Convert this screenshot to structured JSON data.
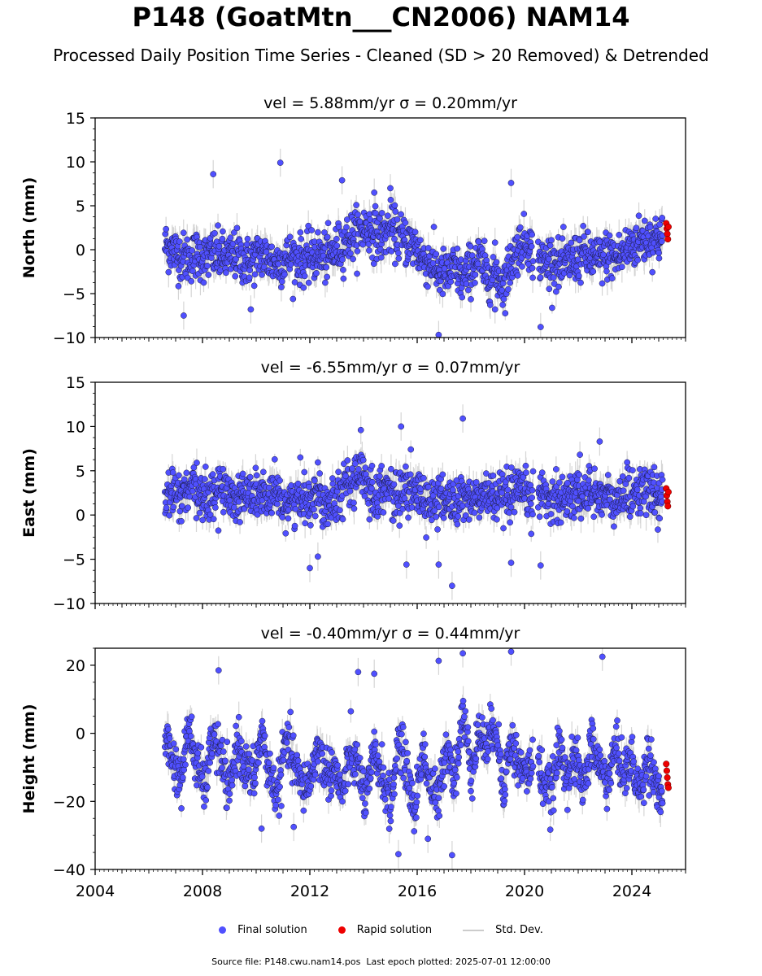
{
  "title": "P148 (GoatMtn___CN2006) NAM14",
  "subtitle": "Processed Daily Position Time Series - Cleaned (SD > 20 Removed) & Detrended",
  "legend": {
    "final": "Final solution",
    "rapid": "Rapid solution",
    "std": "Std. Dev."
  },
  "footer": "Source file: P148.cwu.nam14.pos  Last epoch plotted: 2025-07-01 12:00:00",
  "colors": {
    "final": "#5050ff",
    "rapid": "#ee0000",
    "std": "#c8c8c8",
    "edge": "#1a1a40"
  },
  "chart_data": [
    {
      "type": "scatter",
      "title": "vel = 5.88mm/yr   σ = 0.20mm/yr",
      "xlabel": "",
      "ylabel": "North (mm)",
      "xlim": [
        2004.0,
        2026.0
      ],
      "ylim": [
        -10,
        15
      ],
      "yticks": [
        -10,
        -5,
        0,
        5,
        10,
        15
      ],
      "xticks": [
        2004,
        2008,
        2012,
        2016,
        2020,
        2024
      ],
      "show_xtick_labels": false,
      "series": [
        {
          "name": "Final solution",
          "x": [
            2006.6,
            2006.9,
            2007.2,
            2007.5,
            2007.8,
            2008.1,
            2008.4,
            2008.7,
            2009.0,
            2009.3,
            2009.6,
            2009.9,
            2010.2,
            2010.5,
            2010.8,
            2011.1,
            2011.4,
            2011.7,
            2012.0,
            2012.3,
            2012.6,
            2012.9,
            2013.2,
            2013.5,
            2013.8,
            2014.1,
            2014.4,
            2014.7,
            2015.0,
            2015.3,
            2015.6,
            2015.9,
            2016.2,
            2016.5,
            2016.8,
            2017.1,
            2017.4,
            2017.7,
            2018.0,
            2018.3,
            2018.6,
            2018.9,
            2019.2,
            2019.5,
            2019.8,
            2020.1,
            2020.4,
            2020.7,
            2021.0,
            2021.3,
            2021.6,
            2021.9,
            2022.2,
            2022.5,
            2022.8,
            2023.1,
            2023.4,
            2023.7,
            2024.0,
            2024.3,
            2024.6,
            2024.9,
            2025.15
          ],
          "y": [
            0.5,
            0.0,
            -0.8,
            -1.0,
            -0.5,
            -1.0,
            -0.5,
            -0.8,
            -1.0,
            -0.5,
            -1.5,
            -1.0,
            -0.5,
            -1.2,
            -1.5,
            -1.0,
            -0.8,
            -1.2,
            -1.0,
            -0.5,
            -1.0,
            -0.2,
            0.5,
            1.5,
            2.0,
            2.5,
            2.0,
            1.5,
            2.5,
            1.5,
            1.0,
            0.5,
            -1.0,
            -1.5,
            -2.5,
            -3.0,
            -2.0,
            -3.5,
            -2.0,
            -1.0,
            -3.0,
            -2.5,
            -4.0,
            -1.5,
            0.5,
            1.0,
            -1.0,
            -1.5,
            -1.0,
            -2.0,
            -1.5,
            -1.0,
            -0.5,
            -1.0,
            -1.2,
            -0.5,
            -1.0,
            -0.3,
            0.5,
            1.0,
            1.2,
            1.5,
            1.0
          ],
          "outliers": [
            [
              2008.4,
              8.6
            ],
            [
              2010.9,
              9.9
            ],
            [
              2019.5,
              7.6
            ],
            [
              2013.2,
              7.9
            ],
            [
              2007.3,
              -7.5
            ],
            [
              2020.6,
              -8.8
            ],
            [
              2016.8,
              -9.7
            ],
            [
              2015.0,
              7.0
            ],
            [
              2014.4,
              6.5
            ],
            [
              2009.8,
              -6.8
            ],
            [
              2018.9,
              -6.8
            ]
          ]
        },
        {
          "name": "Rapid solution",
          "x": [
            2025.28,
            2025.3,
            2025.32,
            2025.34,
            2025.36
          ],
          "y": [
            3.0,
            2.4,
            1.8,
            1.2,
            2.6
          ]
        }
      ]
    },
    {
      "type": "scatter",
      "title": "vel = -6.55mm/yr   σ = 0.07mm/yr",
      "xlabel": "",
      "ylabel": "East (mm)",
      "xlim": [
        2004.0,
        2026.0
      ],
      "ylim": [
        -10,
        15
      ],
      "yticks": [
        -10,
        -5,
        0,
        5,
        10,
        15
      ],
      "xticks": [
        2004,
        2008,
        2012,
        2016,
        2020,
        2024
      ],
      "show_xtick_labels": false,
      "series": [
        {
          "name": "Final solution",
          "x": [
            2006.6,
            2006.9,
            2007.2,
            2007.5,
            2007.8,
            2008.1,
            2008.4,
            2008.7,
            2009.0,
            2009.3,
            2009.6,
            2009.9,
            2010.2,
            2010.5,
            2010.8,
            2011.1,
            2011.4,
            2011.7,
            2012.0,
            2012.3,
            2012.6,
            2012.9,
            2013.2,
            2013.5,
            2013.8,
            2014.1,
            2014.4,
            2014.7,
            2015.0,
            2015.3,
            2015.6,
            2015.9,
            2016.2,
            2016.5,
            2016.8,
            2017.1,
            2017.4,
            2017.7,
            2018.0,
            2018.3,
            2018.6,
            2018.9,
            2019.2,
            2019.5,
            2019.8,
            2020.1,
            2020.4,
            2020.7,
            2021.0,
            2021.3,
            2021.6,
            2021.9,
            2022.2,
            2022.5,
            2022.8,
            2023.1,
            2023.4,
            2023.7,
            2024.0,
            2024.3,
            2024.6,
            2024.9,
            2025.15
          ],
          "y": [
            2.0,
            2.5,
            2.0,
            2.8,
            2.5,
            2.0,
            2.5,
            3.0,
            2.5,
            2.0,
            2.5,
            2.0,
            2.5,
            1.5,
            2.0,
            1.5,
            1.5,
            2.0,
            2.0,
            2.5,
            1.5,
            2.0,
            3.0,
            3.5,
            4.5,
            4.0,
            2.0,
            3.5,
            2.5,
            2.0,
            3.0,
            2.5,
            2.0,
            1.5,
            1.5,
            2.0,
            1.0,
            2.0,
            2.0,
            1.5,
            2.5,
            2.0,
            1.5,
            2.0,
            2.5,
            2.0,
            2.0,
            2.5,
            2.0,
            2.0,
            2.0,
            2.5,
            2.5,
            2.5,
            2.5,
            2.0,
            1.0,
            2.5,
            2.5,
            3.0,
            2.5,
            2.0,
            2.0
          ],
          "outliers": [
            [
              2013.9,
              9.6
            ],
            [
              2015.4,
              10.0
            ],
            [
              2017.7,
              10.9
            ],
            [
              2022.8,
              8.3
            ],
            [
              2012.0,
              -6.0
            ],
            [
              2017.3,
              -8.0
            ],
            [
              2020.6,
              -5.7
            ],
            [
              2019.5,
              -5.4
            ],
            [
              2015.6,
              -5.6
            ],
            [
              2012.3,
              -4.7
            ],
            [
              2016.8,
              -5.6
            ]
          ]
        },
        {
          "name": "Rapid solution",
          "x": [
            2025.28,
            2025.3,
            2025.32,
            2025.34,
            2025.36
          ],
          "y": [
            3.0,
            2.2,
            1.5,
            1.0,
            2.6
          ]
        }
      ]
    },
    {
      "type": "scatter",
      "title": "vel = -0.40mm/yr   σ = 0.44mm/yr",
      "xlabel": "",
      "ylabel": "Height (mm)",
      "xlim": [
        2004.0,
        2026.0
      ],
      "ylim": [
        -40,
        25
      ],
      "yticks": [
        -40,
        -20,
        0,
        20
      ],
      "xticks": [
        2004,
        2008,
        2012,
        2016,
        2020,
        2024
      ],
      "show_xtick_labels": true,
      "series": [
        {
          "name": "Final solution",
          "x": [
            2006.6,
            2006.9,
            2007.2,
            2007.5,
            2007.8,
            2008.1,
            2008.4,
            2008.7,
            2009.0,
            2009.3,
            2009.6,
            2009.9,
            2010.2,
            2010.5,
            2010.8,
            2011.1,
            2011.4,
            2011.7,
            2012.0,
            2012.3,
            2012.6,
            2012.9,
            2013.2,
            2013.5,
            2013.8,
            2014.1,
            2014.4,
            2014.7,
            2015.0,
            2015.3,
            2015.6,
            2015.9,
            2016.2,
            2016.5,
            2016.8,
            2017.1,
            2017.4,
            2017.7,
            2018.0,
            2018.3,
            2018.6,
            2018.9,
            2019.2,
            2019.5,
            2019.8,
            2020.1,
            2020.4,
            2020.7,
            2021.0,
            2021.3,
            2021.6,
            2021.9,
            2022.2,
            2022.5,
            2022.8,
            2023.1,
            2023.4,
            2023.7,
            2024.0,
            2024.3,
            2024.6,
            2024.9,
            2025.15
          ],
          "y": [
            0,
            -8,
            -14,
            2,
            -10,
            -16,
            0,
            -8,
            -18,
            -2,
            -10,
            -14,
            0,
            -12,
            -18,
            -2,
            -8,
            -16,
            -14,
            -4,
            -12,
            -10,
            -18,
            -6,
            -10,
            -20,
            -6,
            -12,
            -22,
            -2,
            -10,
            -24,
            -4,
            -16,
            -20,
            -2,
            -14,
            6,
            -10,
            0,
            -4,
            4,
            -16,
            -2,
            -10,
            -12,
            -6,
            -14,
            -18,
            -4,
            -12,
            -8,
            -16,
            -2,
            -10,
            -14,
            -4,
            -12,
            -8,
            -18,
            -6,
            -14,
            -20
          ],
          "outliers": [
            [
              2008.6,
              18.5
            ],
            [
              2017.7,
              23.5
            ],
            [
              2019.5,
              24.0
            ],
            [
              2022.9,
              22.5
            ],
            [
              2015.3,
              -35.5
            ],
            [
              2017.3,
              -35.8
            ],
            [
              2016.8,
              21.3
            ],
            [
              2013.8,
              18.0
            ],
            [
              2014.4,
              17.5
            ],
            [
              2011.4,
              -27.5
            ],
            [
              2010.2,
              -28.0
            ],
            [
              2016.4,
              -31.0
            ]
          ]
        },
        {
          "name": "Rapid solution",
          "x": [
            2025.28,
            2025.3,
            2025.32,
            2025.34,
            2025.36
          ],
          "y": [
            -9,
            -11,
            -13,
            -15,
            -16
          ]
        }
      ]
    }
  ]
}
